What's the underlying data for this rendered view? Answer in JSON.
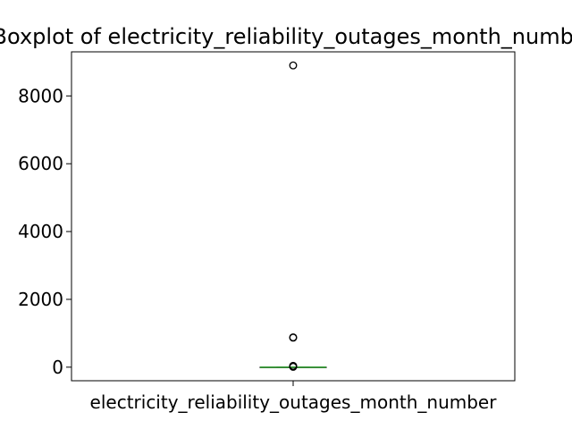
{
  "chart_data": {
    "type": "boxplot",
    "title": "Boxplot of electricity_reliability_outages_month_number",
    "xlabel": "electricity_reliability_outages_month_number",
    "ylabel": "",
    "ylim": [
      -400,
      9300
    ],
    "yticks": [
      0,
      2000,
      4000,
      6000,
      8000
    ],
    "categories": [
      "electricity_reliability_outages_month_number"
    ],
    "box": {
      "q1": 0,
      "median": 0,
      "q3": 0,
      "whisker_low": 0,
      "whisker_high": 0
    },
    "outliers": [
      8900,
      880,
      870,
      40,
      30,
      20,
      10
    ],
    "colors": {
      "median": "#2ca02c",
      "box": "#000000",
      "outlier": "#000000"
    },
    "grid": false
  }
}
